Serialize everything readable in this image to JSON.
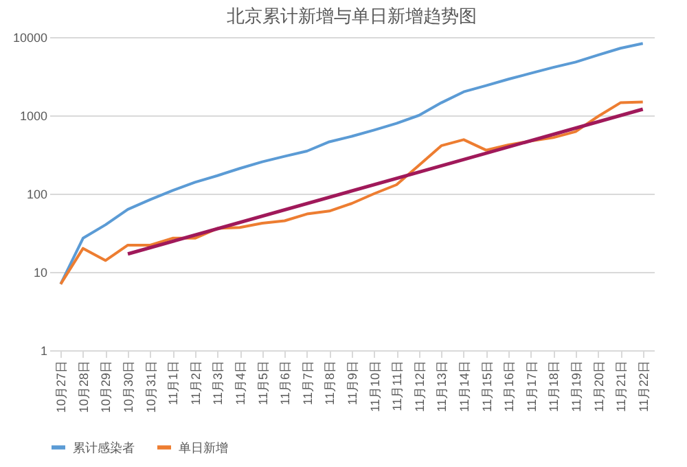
{
  "chart_data": {
    "type": "line",
    "title": "北京累计新增与单日新增趋势图",
    "categories": [
      "10月27日",
      "10月28日",
      "10月29日",
      "10月30日",
      "10月31日",
      "11月1日",
      "11月2日",
      "11月3日",
      "11月4日",
      "11月5日",
      "11月6日",
      "11月7日",
      "11月8日",
      "11月9日",
      "11月10日",
      "11月11日",
      "11月12日",
      "11月13日",
      "11月14日",
      "11月15日",
      "11月16日",
      "11月17日",
      "11月18日",
      "11月19日",
      "11月20日",
      "11月21日",
      "11月22日"
    ],
    "series": [
      {
        "name": "累计感染者",
        "color": "#5b9bd5",
        "values": [
          7,
          27,
          40,
          63,
          84,
          110,
          140,
          170,
          210,
          255,
          300,
          350,
          460,
          540,
          650,
          790,
          1000,
          1450,
          2000,
          2400,
          2900,
          3450,
          4100,
          4800,
          5900,
          7200,
          8300
        ]
      },
      {
        "name": "单日新增",
        "color": "#ed7d31",
        "values": [
          7,
          20,
          14,
          22,
          22,
          27,
          27,
          36,
          37,
          42,
          45,
          55,
          60,
          75,
          100,
          130,
          230,
          410,
          490,
          360,
          420,
          470,
          520,
          620,
          970,
          1450,
          1480
        ]
      },
      {
        "type": "line",
        "color": "#a0195a",
        "x": [
          "10月30日",
          "11月22日"
        ],
        "values": [
          17,
          1200
        ]
      }
    ],
    "log": true,
    "ylim": [
      1,
      10000
    ],
    "yticks": [
      1,
      10,
      100,
      1000,
      10000
    ],
    "grid": "y",
    "legend": "bottom"
  }
}
